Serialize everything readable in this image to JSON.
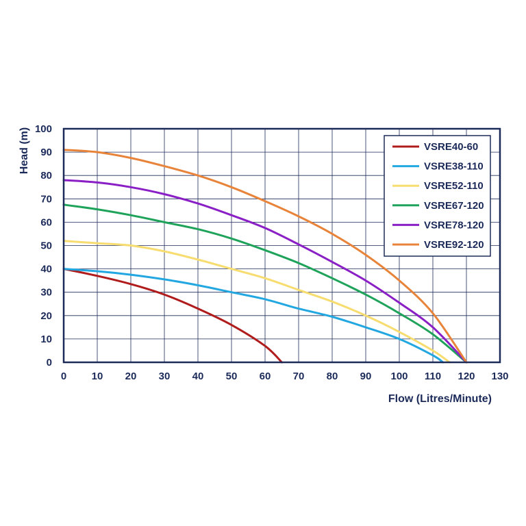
{
  "chart_data": {
    "type": "line",
    "xlabel": "Flow (Litres/Minute)",
    "ylabel": "Head (m)",
    "xlim": [
      0,
      130
    ],
    "ylim": [
      0,
      100
    ],
    "xticks": [
      0,
      10,
      20,
      30,
      40,
      50,
      60,
      70,
      80,
      90,
      100,
      110,
      120,
      130
    ],
    "yticks": [
      0,
      10,
      20,
      30,
      40,
      50,
      60,
      70,
      80,
      90,
      100
    ],
    "grid": true,
    "legend": "top-right",
    "colors": {
      "axis": "#1b2a59",
      "grid": "#1b2a59"
    },
    "series": [
      {
        "name": "VSRE40-60",
        "color": "#b01c1c",
        "points": [
          [
            0,
            40
          ],
          [
            10,
            37
          ],
          [
            20,
            33.5
          ],
          [
            30,
            29
          ],
          [
            40,
            23
          ],
          [
            50,
            16
          ],
          [
            60,
            7
          ],
          [
            65,
            0
          ]
        ]
      },
      {
        "name": "VSRE38-110",
        "color": "#23a7e0",
        "points": [
          [
            0,
            40
          ],
          [
            10,
            39
          ],
          [
            20,
            37.5
          ],
          [
            30,
            35.5
          ],
          [
            40,
            33
          ],
          [
            50,
            30
          ],
          [
            60,
            27
          ],
          [
            70,
            23
          ],
          [
            80,
            19.5
          ],
          [
            90,
            15
          ],
          [
            100,
            10
          ],
          [
            110,
            3
          ],
          [
            113,
            0
          ]
        ]
      },
      {
        "name": "VSRE52-110",
        "color": "#f7dc6f",
        "points": [
          [
            0,
            52
          ],
          [
            10,
            51
          ],
          [
            20,
            50
          ],
          [
            30,
            47.5
          ],
          [
            40,
            44
          ],
          [
            50,
            40
          ],
          [
            60,
            36
          ],
          [
            70,
            31
          ],
          [
            80,
            26
          ],
          [
            90,
            20
          ],
          [
            100,
            13
          ],
          [
            110,
            5
          ],
          [
            115,
            0
          ]
        ]
      },
      {
        "name": "VSRE67-120",
        "color": "#1fa35a",
        "points": [
          [
            0,
            67.5
          ],
          [
            10,
            65.5
          ],
          [
            20,
            63
          ],
          [
            30,
            60
          ],
          [
            40,
            57
          ],
          [
            50,
            53
          ],
          [
            60,
            48
          ],
          [
            70,
            42.5
          ],
          [
            80,
            36
          ],
          [
            90,
            29
          ],
          [
            100,
            21
          ],
          [
            110,
            12
          ],
          [
            120,
            0
          ]
        ]
      },
      {
        "name": "VSRE78-120",
        "color": "#8a1fc6",
        "points": [
          [
            0,
            78
          ],
          [
            10,
            77
          ],
          [
            20,
            75
          ],
          [
            30,
            72
          ],
          [
            40,
            68
          ],
          [
            50,
            63
          ],
          [
            60,
            57.5
          ],
          [
            70,
            50.5
          ],
          [
            80,
            43
          ],
          [
            90,
            35
          ],
          [
            100,
            25.5
          ],
          [
            110,
            15
          ],
          [
            120,
            0
          ]
        ]
      },
      {
        "name": "VSRE92-120",
        "color": "#e8833a",
        "points": [
          [
            0,
            91
          ],
          [
            10,
            90
          ],
          [
            20,
            87.5
          ],
          [
            30,
            84
          ],
          [
            40,
            80
          ],
          [
            50,
            75
          ],
          [
            60,
            69
          ],
          [
            70,
            62.5
          ],
          [
            80,
            55
          ],
          [
            90,
            46
          ],
          [
            100,
            35
          ],
          [
            110,
            21
          ],
          [
            120,
            0
          ]
        ]
      }
    ]
  }
}
